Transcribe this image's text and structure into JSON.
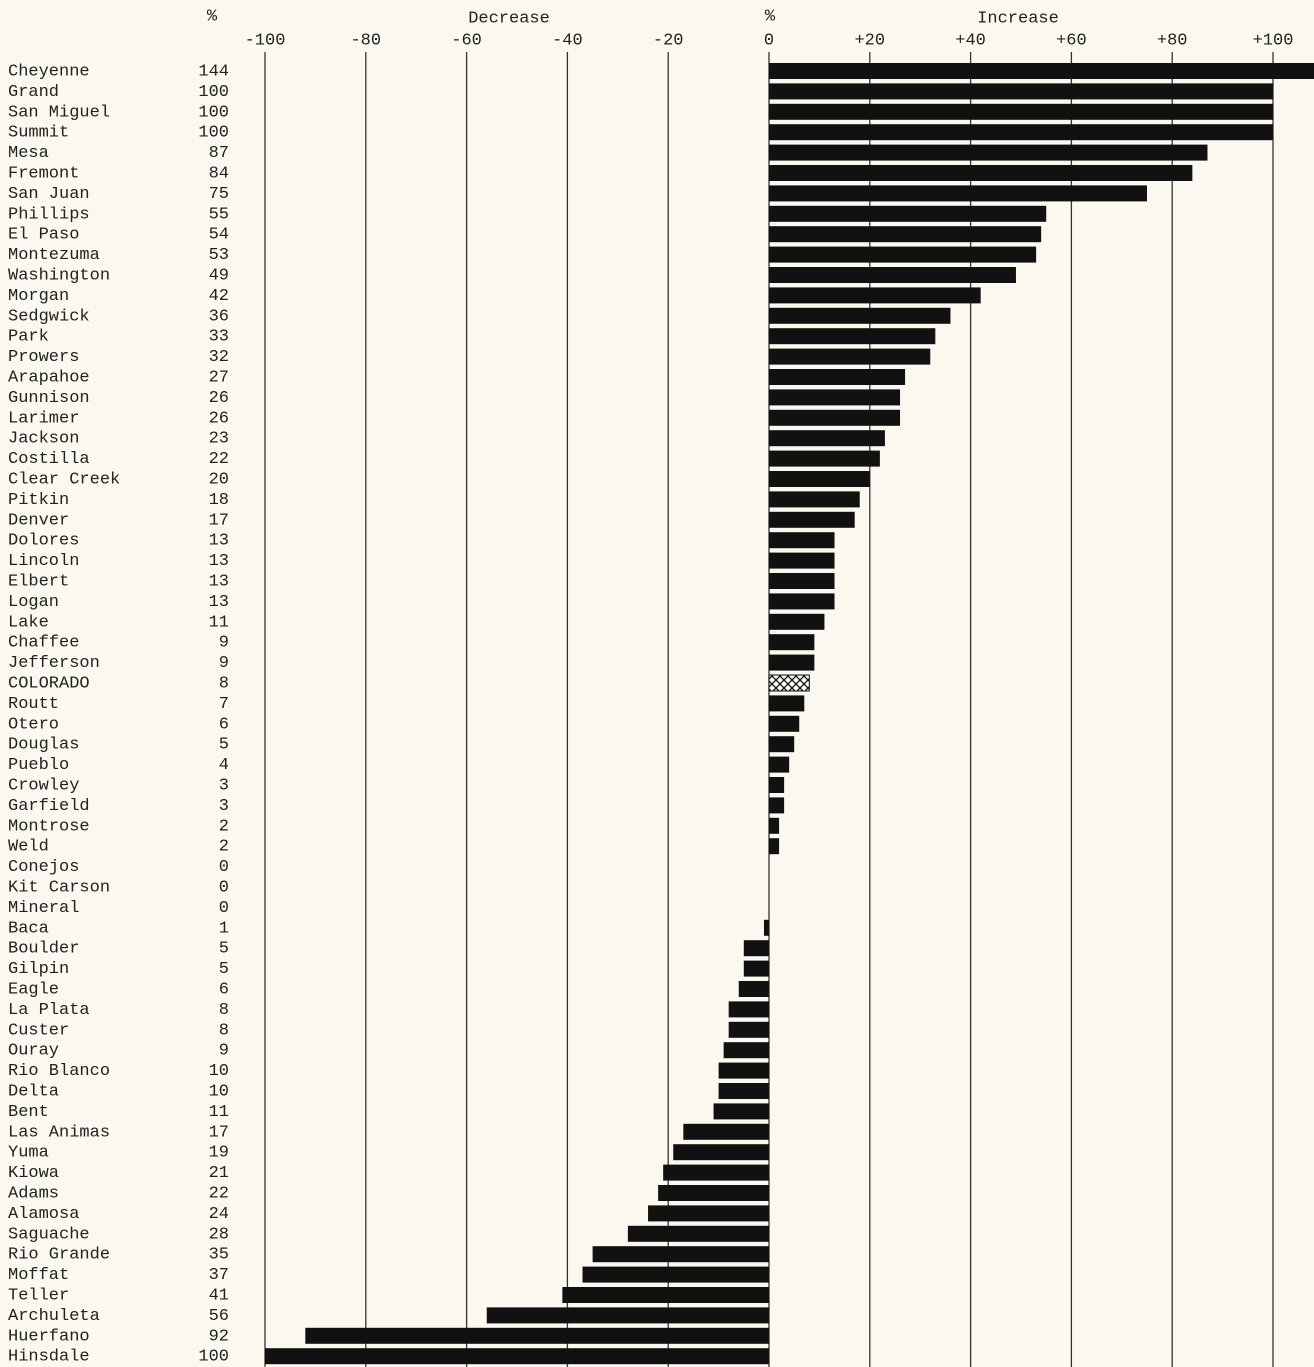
{
  "chart_data": {
    "type": "bar",
    "orientation": "horizontal",
    "left_header": "%",
    "center_header": "%",
    "decrease_label": "Decrease",
    "increase_label": "Increase",
    "categories": [
      "Cheyenne",
      "Grand",
      "San Miguel",
      "Summit",
      "Mesa",
      "Fremont",
      "San Juan",
      "Phillips",
      "El Paso",
      "Montezuma",
      "Washington",
      "Morgan",
      "Sedgwick",
      "Park",
      "Prowers",
      "Arapahoe",
      "Gunnison",
      "Larimer",
      "Jackson",
      "Costilla",
      "Clear Creek",
      "Pitkin",
      "Denver",
      "Dolores",
      "Lincoln",
      "Elbert",
      "Logan",
      "Lake",
      "Chaffee",
      "Jefferson",
      "COLORADO",
      "Routt",
      "Otero",
      "Douglas",
      "Pueblo",
      "Crowley",
      "Garfield",
      "Montrose",
      "Weld",
      "Conejos",
      "Kit Carson",
      "Mineral",
      "Baca",
      "Boulder",
      "Gilpin",
      "Eagle",
      "La Plata",
      "Custer",
      "Ouray",
      "Rio Blanco",
      "Delta",
      "Bent",
      "Las Animas",
      "Yuma",
      "Kiowa",
      "Adams",
      "Alamosa",
      "Saguache",
      "Rio Grande",
      "Moffat",
      "Teller",
      "Archuleta",
      "Huerfano",
      "Hinsdale"
    ],
    "values": [
      144,
      100,
      100,
      100,
      87,
      84,
      75,
      55,
      54,
      53,
      49,
      42,
      36,
      33,
      32,
      27,
      26,
      26,
      23,
      22,
      20,
      18,
      17,
      13,
      13,
      13,
      13,
      11,
      9,
      9,
      8,
      7,
      6,
      5,
      4,
      3,
      3,
      2,
      2,
      0,
      0,
      0,
      -1,
      -5,
      -5,
      -6,
      -8,
      -8,
      -9,
      -10,
      -10,
      -11,
      -17,
      -19,
      -21,
      -22,
      -24,
      -28,
      -35,
      -37,
      -41,
      -56,
      -92,
      -100
    ],
    "value_labels": [
      "144",
      "100",
      "100",
      "100",
      "87",
      "84",
      "75",
      "55",
      "54",
      "53",
      "49",
      "42",
      "36",
      "33",
      "32",
      "27",
      "26",
      "26",
      "23",
      "22",
      "20",
      "18",
      "17",
      "13",
      "13",
      "13",
      "13",
      "11",
      "9",
      "9",
      "8",
      "7",
      "6",
      "5",
      "4",
      "3",
      "3",
      "2",
      "2",
      "0",
      "0",
      "0",
      "1",
      "5",
      "5",
      "6",
      "8",
      "8",
      "9",
      "10",
      "10",
      "11",
      "17",
      "19",
      "21",
      "22",
      "24",
      "28",
      "35",
      "37",
      "41",
      "56",
      "92",
      "100"
    ],
    "color": "#111111",
    "hatched_categories": [
      "COLORADO"
    ],
    "xlim": [
      -100,
      100
    ],
    "xticks": [
      -100,
      -80,
      -60,
      -40,
      -20,
      0,
      {
        "value": 20,
        "label": "+20"
      },
      {
        "value": 40,
        "label": "+40"
      },
      {
        "value": 60,
        "label": "+60"
      },
      {
        "value": 80,
        "label": "+80"
      },
      {
        "value": 100,
        "label": "+100"
      }
    ],
    "grid": true
  }
}
